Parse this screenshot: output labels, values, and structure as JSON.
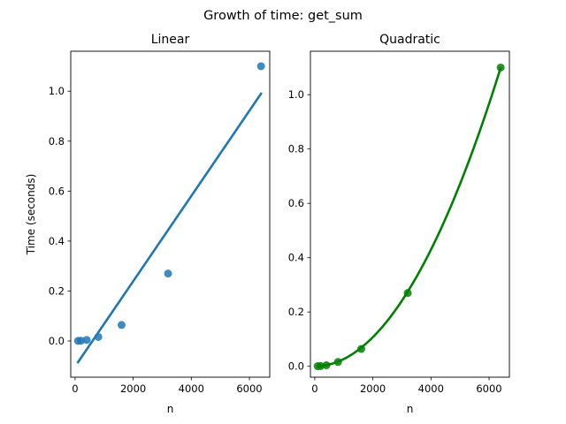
{
  "figure": {
    "title": "Growth of time: get_sum"
  },
  "chart_data": [
    {
      "type": "scatter",
      "title": "Linear",
      "xlabel": "n",
      "ylabel": "Time (seconds)",
      "xlim": [
        -150,
        6700
      ],
      "ylim": [
        -0.145,
        1.16
      ],
      "xticks": [
        0,
        2000,
        4000,
        6000
      ],
      "yticks": [
        0.0,
        0.2,
        0.4,
        0.6,
        0.8,
        1.0
      ],
      "ytick_labels": [
        "0.0",
        "0.2",
        "0.4",
        "0.6",
        "0.8",
        "1.0"
      ],
      "grid": false,
      "points": {
        "x": [
          100,
          200,
          400,
          800,
          1600,
          3200,
          6400
        ],
        "y": [
          0.0005,
          0.001,
          0.004,
          0.016,
          0.064,
          0.27,
          1.1
        ],
        "color": "#1f77b4"
      },
      "fit_line": {
        "x": [
          100,
          6400
        ],
        "y": [
          -0.085,
          0.99
        ],
        "color": "#1f77b4"
      }
    },
    {
      "type": "scatter",
      "title": "Quadratic",
      "xlabel": "n",
      "ylabel": "",
      "xlim": [
        -150,
        6700
      ],
      "ylim": [
        -0.04,
        1.16
      ],
      "xticks": [
        0,
        2000,
        4000,
        6000
      ],
      "yticks": [
        0.0,
        0.2,
        0.4,
        0.6,
        0.8,
        1.0
      ],
      "ytick_labels": [
        "0.0",
        "0.2",
        "0.4",
        "0.6",
        "0.8",
        "1.0"
      ],
      "grid": false,
      "points": {
        "x": [
          100,
          200,
          400,
          800,
          1600,
          3200,
          6400
        ],
        "y": [
          0.0005,
          0.001,
          0.004,
          0.016,
          0.064,
          0.27,
          1.1
        ],
        "color": "#008000"
      },
      "fit_curve": {
        "model": "a*n^2",
        "a": 2.685e-08,
        "x_range": [
          100,
          6400
        ],
        "color": "#008000"
      }
    }
  ]
}
